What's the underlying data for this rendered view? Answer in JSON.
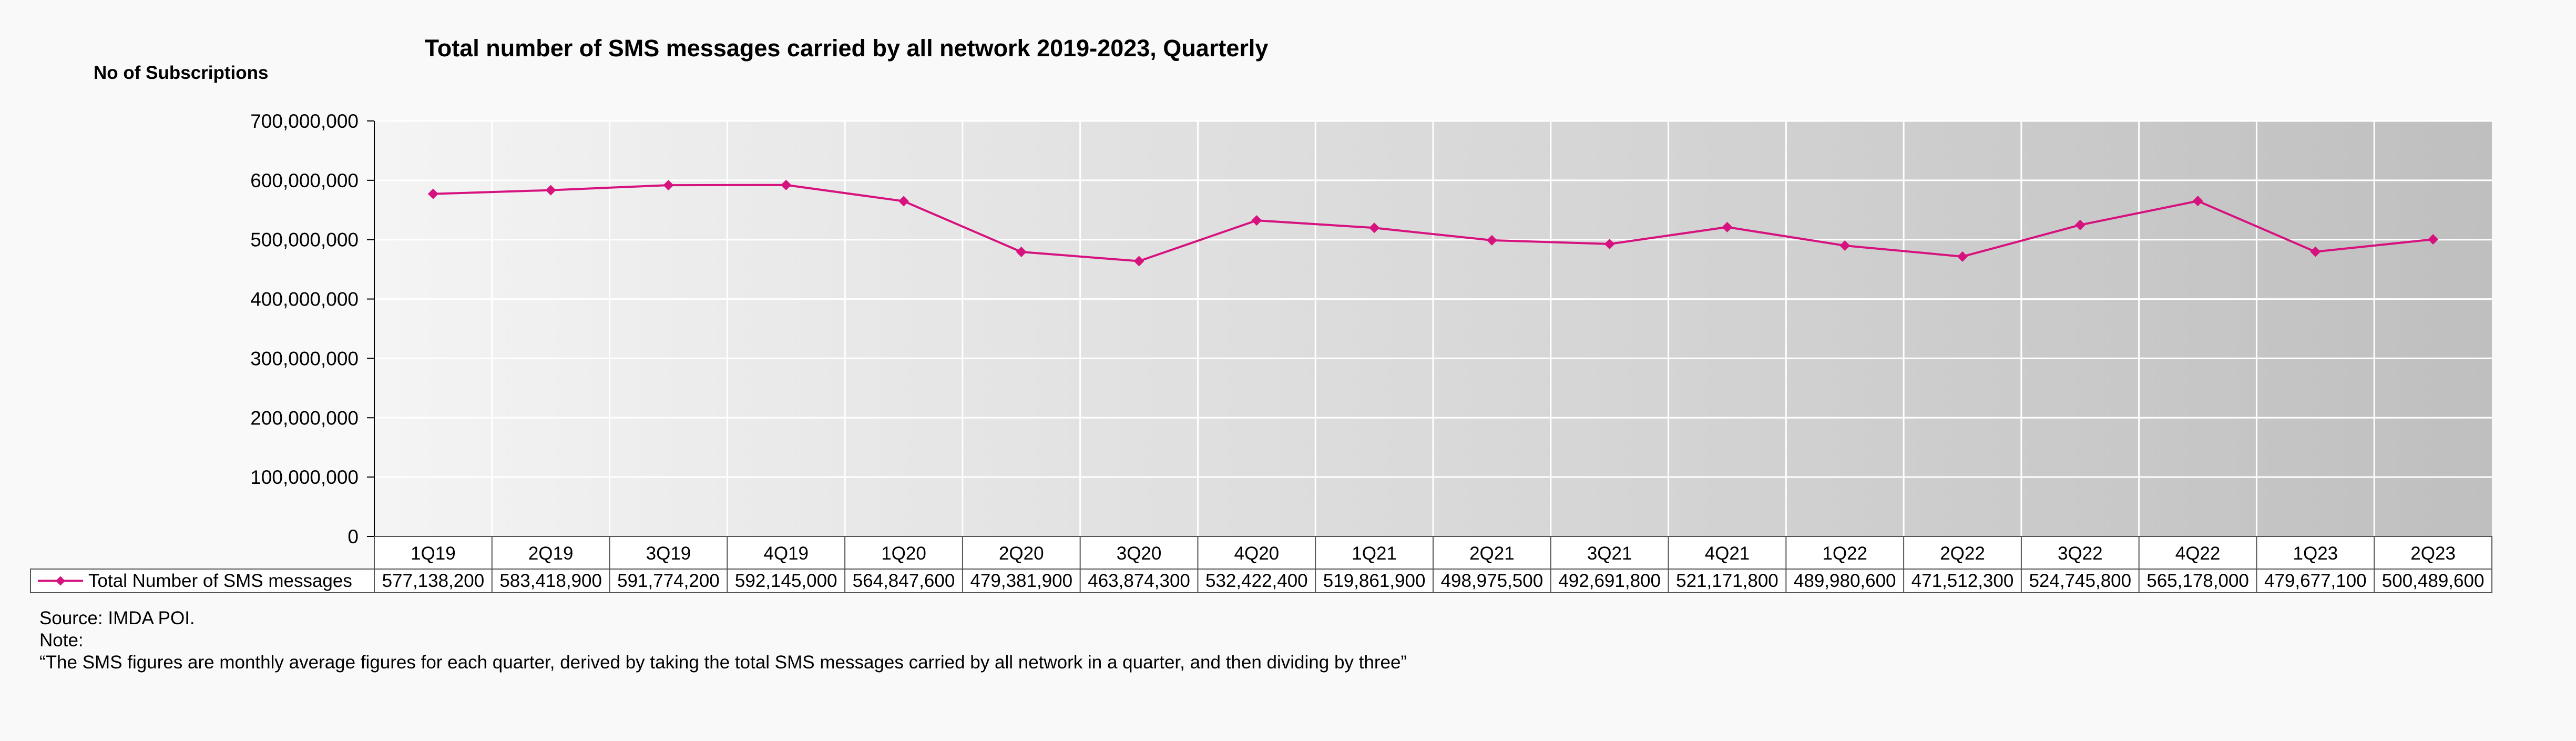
{
  "chart_data": {
    "type": "line",
    "title": "Total number of SMS messages carried by all network 2019-2023, Quarterly",
    "ylabel": "No of Subscriptions",
    "xlabel": "",
    "ylim": [
      0,
      700000000
    ],
    "yticks": [
      "0",
      "100,000,000",
      "200,000,000",
      "300,000,000",
      "400,000,000",
      "500,000,000",
      "600,000,000",
      "700,000,000"
    ],
    "grid": true,
    "legend": "data-table",
    "categories": [
      "1Q19",
      "2Q19",
      "3Q19",
      "4Q19",
      "1Q20",
      "2Q20",
      "3Q20",
      "4Q20",
      "1Q21",
      "2Q21",
      "3Q21",
      "4Q21",
      "1Q22",
      "2Q22",
      "3Q22",
      "4Q22",
      "1Q23",
      "2Q23"
    ],
    "series": [
      {
        "name": "Total Number of SMS messages",
        "color": "#d6127e",
        "values": [
          577138200,
          583418900,
          591774200,
          592145000,
          564847600,
          479381900,
          463874300,
          532422400,
          519861900,
          498975500,
          492691800,
          521171800,
          489980600,
          471512300,
          524745800,
          565178000,
          479677100,
          500489600
        ],
        "labels": [
          "577,138,200",
          "583,418,900",
          "591,774,200",
          "592,145,000",
          "564,847,600",
          "479,381,900",
          "463,874,300",
          "532,422,400",
          "519,861,900",
          "498,975,500",
          "492,691,800",
          "521,171,800",
          "489,980,600",
          "471,512,300",
          "524,745,800",
          "565,178,000",
          "479,677,100",
          "500,489,600"
        ]
      }
    ]
  },
  "notes": {
    "source": "Source: IMDA POI.",
    "note_label": "Note:",
    "note_text": "“The SMS figures are monthly average figures for each quarter, derived by taking the total SMS messages carried by all network in a quarter, and then dividing by three”"
  }
}
